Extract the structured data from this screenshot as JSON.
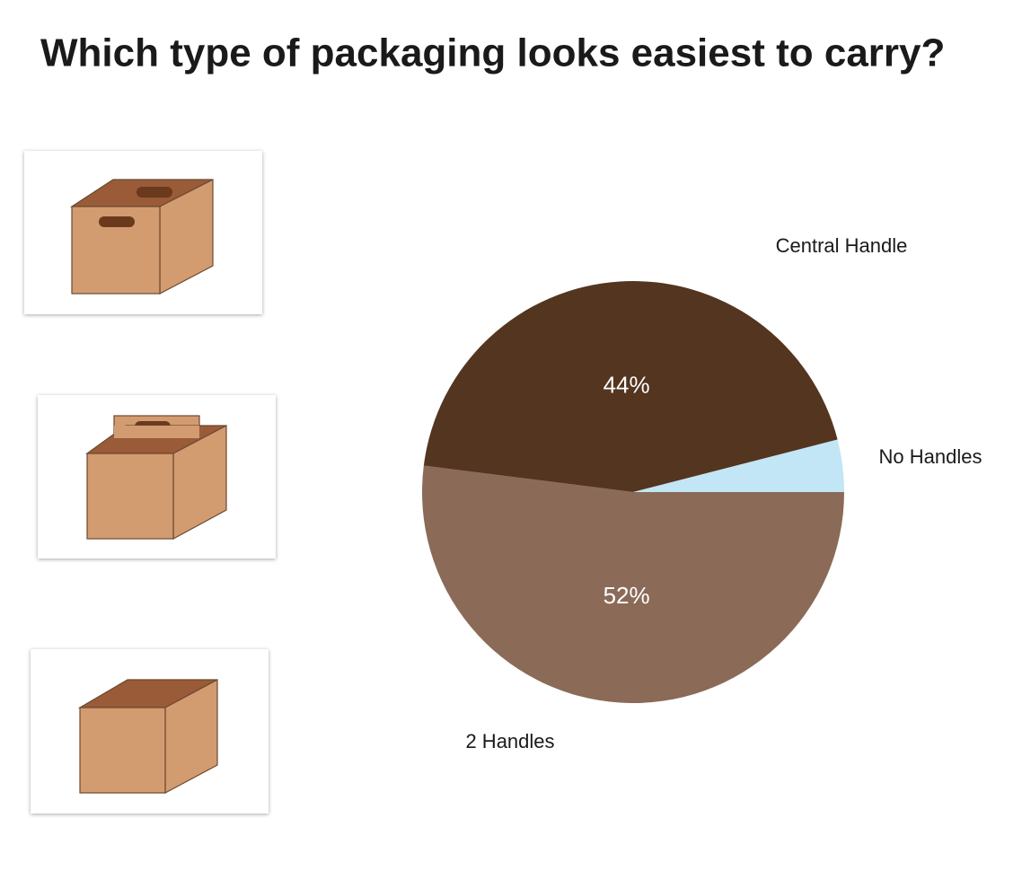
{
  "chart_data": {
    "type": "pie",
    "title": "Which type of packaging looks easiest to carry?",
    "categories": [
      "2 Handles",
      "Central Handle",
      "No Handles"
    ],
    "values": [
      52,
      44,
      4
    ],
    "value_labels": [
      "52%",
      "44%",
      null
    ],
    "colors": [
      "#8b6a58",
      "#533520",
      "#c2e6f5"
    ]
  }
}
